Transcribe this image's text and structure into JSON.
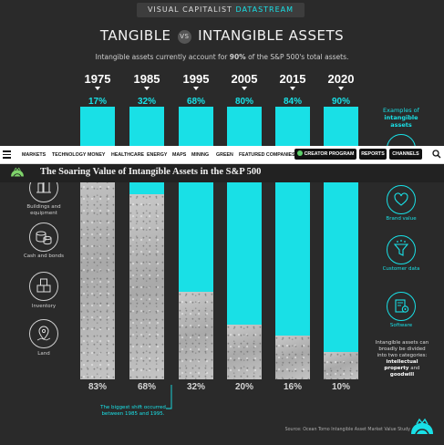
{
  "banner": {
    "prefix": "VISUAL CAPITALIST",
    "highlight": "DATASTREAM"
  },
  "title": {
    "left": "TANGIBLE",
    "vs": "VS",
    "right": "INTANGIBLE ASSETS"
  },
  "subtitle": {
    "pre": "Intangible assets currently account for ",
    "bold": "90%",
    "post": " of the S&P 500's total assets."
  },
  "navbar": {
    "items": [
      "MARKETS",
      "TECHNOLOGY",
      "MONEY",
      "HEALTHCARE",
      "ENERGY",
      "MAPS",
      "MINING",
      "GREEN",
      "FEATURED COMPANIES"
    ],
    "creator": "CREATOR PROGRAM",
    "reports": "REPORTS",
    "channels": "CHANNELS"
  },
  "logobar": {
    "title": "The Soaring Value of Intangible Assets in the S&P 500"
  },
  "left_icons": [
    {
      "label": "Buildings and equipment",
      "icon": "buildings-icon"
    },
    {
      "label": "Cash and bonds",
      "icon": "coins-icon"
    },
    {
      "label": "Inventory",
      "icon": "boxes-icon"
    },
    {
      "label": "Land",
      "icon": "map-pin-icon"
    }
  ],
  "examples_label": {
    "line1": "Examples of",
    "line2": "intangible assets"
  },
  "right_icons": [
    {
      "label": "Brand value",
      "icon": "heart-icon"
    },
    {
      "label": "Customer data",
      "icon": "funnel-icon"
    },
    {
      "label": "Software",
      "icon": "software-icon"
    }
  ],
  "note": {
    "pre": "Intangible assets can broadly be divided into two categories: ",
    "b1": "intellectual property",
    "mid": " and ",
    "b2": "goodwill"
  },
  "shift_note": {
    "line1": "The biggest shift occurred",
    "line2": "between 1985 and 1995."
  },
  "source": "Source: Ocean Tomo Intangible Asset Market Value Study",
  "colors": {
    "intangible": "#19e0e6",
    "background": "#2a2a2a",
    "tangible": "#bdbdbd"
  },
  "chart_data": {
    "type": "bar",
    "stacked": true,
    "categories": [
      "1975",
      "1985",
      "1995",
      "2005",
      "2015",
      "2020"
    ],
    "series": [
      {
        "name": "Intangible",
        "values": [
          17,
          32,
          68,
          80,
          84,
          90
        ]
      },
      {
        "name": "Tangible",
        "values": [
          83,
          68,
          32,
          20,
          16,
          10
        ]
      }
    ],
    "top_labels": [
      "17%",
      "32%",
      "68%",
      "80%",
      "84%",
      "90%"
    ],
    "bottom_labels": [
      "83%",
      "68%",
      "32%",
      "20%",
      "16%",
      "10%"
    ],
    "ylim": [
      0,
      100
    ]
  }
}
